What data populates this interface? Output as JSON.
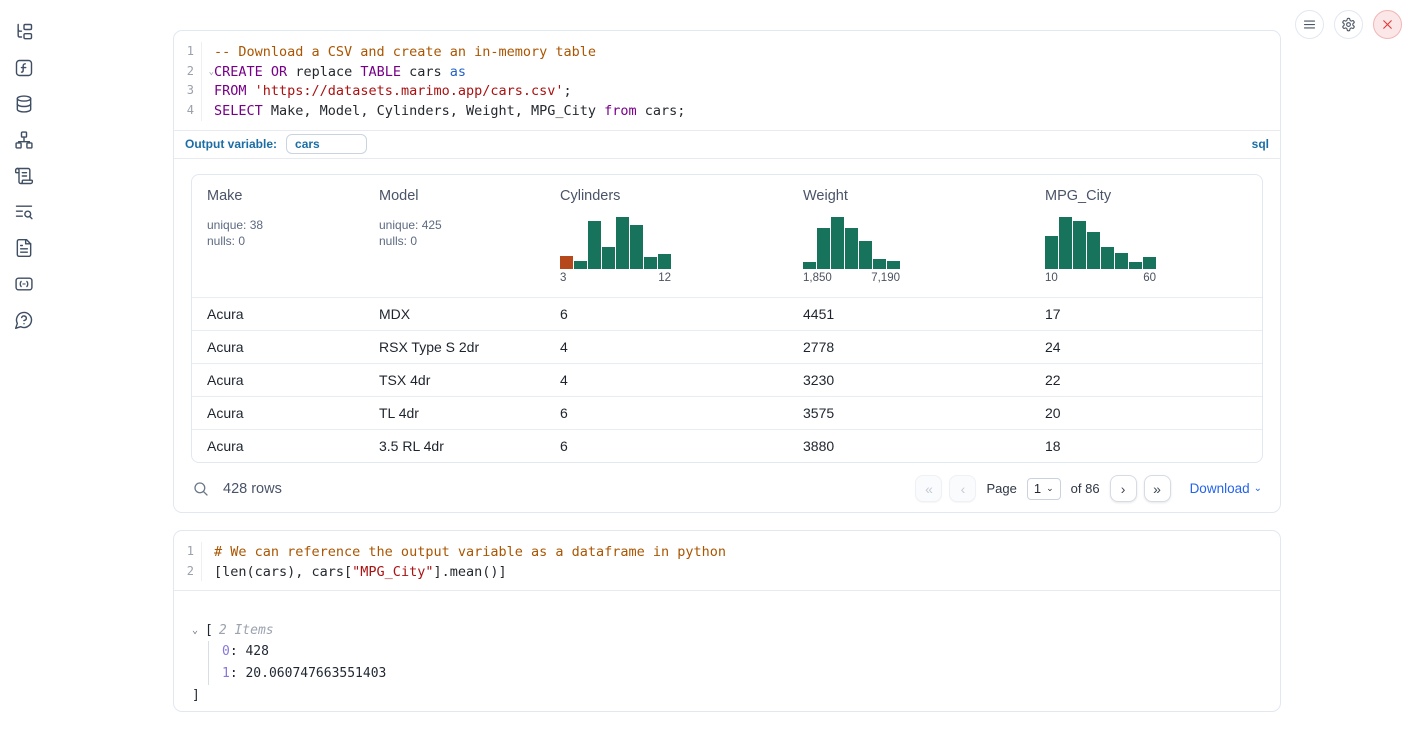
{
  "sidebar": {
    "icons": [
      "file-tree",
      "functions",
      "datasources",
      "dependency-graph",
      "scratchpad",
      "logs-search",
      "documentation",
      "snippets",
      "help"
    ]
  },
  "topbar": {
    "buttons": [
      "menu",
      "settings",
      "close"
    ]
  },
  "colors": {
    "hist_green": "#17735c",
    "hist_orange": "#b5491b",
    "accent_blue": "#1b6da5",
    "link_blue": "#2563eb"
  },
  "cell1": {
    "language_badge": "sql",
    "output_variable_label": "Output variable:",
    "output_variable_value": "cars",
    "code_lines": [
      {
        "no": "1",
        "tokens": [
          {
            "c": "com",
            "t": "-- Download a CSV and create an in-memory table"
          }
        ]
      },
      {
        "no": "2",
        "fold": true,
        "tokens": [
          {
            "c": "kw",
            "t": "CREATE"
          },
          {
            "c": "pl",
            "t": " "
          },
          {
            "c": "kw",
            "t": "OR"
          },
          {
            "c": "pl",
            "t": " replace "
          },
          {
            "c": "kw",
            "t": "TABLE"
          },
          {
            "c": "pl",
            "t": " cars "
          },
          {
            "c": "blue",
            "t": "as"
          }
        ]
      },
      {
        "no": "3",
        "tokens": [
          {
            "c": "kw",
            "t": "FROM"
          },
          {
            "c": "pl",
            "t": " "
          },
          {
            "c": "str",
            "t": "'https://datasets.marimo.app/cars.csv'"
          },
          {
            "c": "pl",
            "t": ";"
          }
        ]
      },
      {
        "no": "4",
        "tokens": [
          {
            "c": "kw",
            "t": "SELECT"
          },
          {
            "c": "pl",
            "t": " Make, Model, Cylinders, Weight, MPG_City "
          },
          {
            "c": "kw",
            "t": "from"
          },
          {
            "c": "pl",
            "t": " cars;"
          }
        ]
      }
    ],
    "table": {
      "columns": [
        {
          "name": "Make",
          "stats": [
            "unique: 38",
            "nulls: 0"
          ]
        },
        {
          "name": "Model",
          "stats": [
            "unique: 425",
            "nulls: 0"
          ]
        },
        {
          "name": "Cylinders",
          "hist_index": 0
        },
        {
          "name": "Weight",
          "hist_index": 1
        },
        {
          "name": "MPG_City",
          "hist_index": 2
        }
      ],
      "rows": [
        [
          "Acura",
          "MDX",
          "6",
          "4451",
          "17"
        ],
        [
          "Acura",
          "RSX Type S 2dr",
          "4",
          "2778",
          "24"
        ],
        [
          "Acura",
          "TSX 4dr",
          "4",
          "3230",
          "22"
        ],
        [
          "Acura",
          "TL 4dr",
          "6",
          "3575",
          "20"
        ],
        [
          "Acura",
          "3.5 RL 4dr",
          "6",
          "3880",
          "18"
        ]
      ]
    },
    "footer": {
      "row_count": "428 rows",
      "page_label": "Page",
      "page_value": "1",
      "of_label": "of 86",
      "download_label": "Download",
      "pager": {
        "first": "«",
        "prev": "‹",
        "next": "›",
        "last": "»"
      }
    }
  },
  "cell2": {
    "code_lines": [
      {
        "no": "1",
        "tokens": [
          {
            "c": "com",
            "t": "# We can reference the output variable as a dataframe in python"
          }
        ]
      },
      {
        "no": "2",
        "tokens": [
          {
            "c": "pl",
            "t": "[len(cars), cars["
          },
          {
            "c": "str",
            "t": "\"MPG_City\""
          },
          {
            "c": "pl",
            "t": "].mean()]"
          }
        ]
      }
    ],
    "output_tree": {
      "open_bracket": "[",
      "items_label": "2 Items",
      "items": [
        {
          "key": "0",
          "value": "428"
        },
        {
          "key": "1",
          "value": "20.060747663551403"
        }
      ],
      "close_bracket": "]"
    }
  },
  "chart_data": [
    {
      "type": "bar",
      "subtype": "column-summary-histogram",
      "title": "Cylinders",
      "xlabel": "",
      "ylabel": "",
      "x_axis_tick_labels": [
        "3",
        "12"
      ],
      "values": [
        0.25,
        0.16,
        0.93,
        0.42,
        1.0,
        0.85,
        0.24,
        0.29
      ],
      "bar_colors": [
        "#b5491b",
        "#17735c",
        "#17735c",
        "#17735c",
        "#17735c",
        "#17735c",
        "#17735c",
        "#17735c"
      ]
    },
    {
      "type": "bar",
      "subtype": "column-summary-histogram",
      "title": "Weight",
      "xlabel": "",
      "ylabel": "",
      "x_axis_tick_labels": [
        "1,850",
        "7,190"
      ],
      "values": [
        0.13,
        0.78,
        1.0,
        0.78,
        0.53,
        0.19,
        0.15
      ],
      "bar_colors": [
        "#17735c",
        "#17735c",
        "#17735c",
        "#17735c",
        "#17735c",
        "#17735c",
        "#17735c"
      ]
    },
    {
      "type": "bar",
      "subtype": "column-summary-histogram",
      "title": "MPG_City",
      "xlabel": "",
      "ylabel": "",
      "x_axis_tick_labels": [
        "10",
        "60"
      ],
      "values": [
        0.63,
        1.0,
        0.92,
        0.71,
        0.42,
        0.31,
        0.13,
        0.23
      ],
      "bar_colors": [
        "#17735c",
        "#17735c",
        "#17735c",
        "#17735c",
        "#17735c",
        "#17735c",
        "#17735c",
        "#17735c"
      ]
    }
  ]
}
